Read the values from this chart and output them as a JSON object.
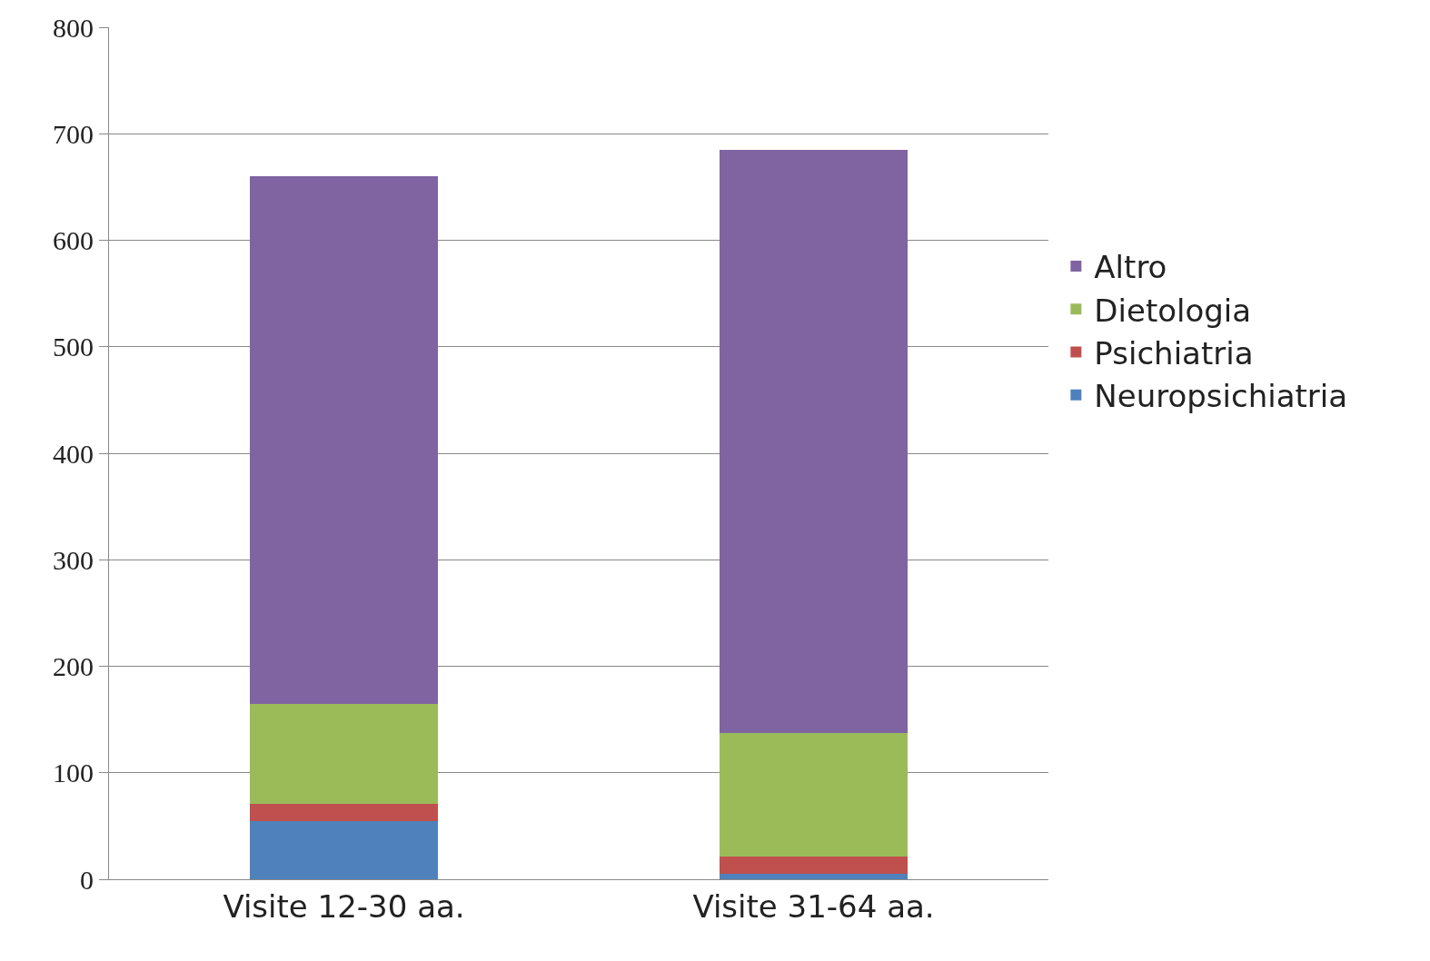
{
  "chart_data": {
    "type": "bar",
    "stacked": true,
    "categories": [
      "Visite 12-30 aa.",
      "Visite 31-64 aa."
    ],
    "series": [
      {
        "name": "Neuropsichiatria",
        "color": "#4f81bd",
        "values": [
          55,
          5
        ]
      },
      {
        "name": "Psichiatria",
        "color": "#c0504d",
        "values": [
          16,
          16
        ]
      },
      {
        "name": "Dietologia",
        "color": "#9bbb59",
        "values": [
          94,
          116
        ]
      },
      {
        "name": "Altro",
        "color": "#8064a2",
        "values": [
          495,
          548
        ]
      }
    ],
    "ylim": [
      0,
      800
    ],
    "yticks": [
      0,
      100,
      200,
      300,
      400,
      500,
      600,
      700,
      800
    ],
    "grid": "y",
    "legend": "right"
  }
}
